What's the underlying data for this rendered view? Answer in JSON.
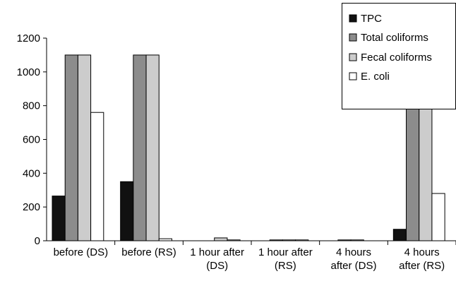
{
  "chart_data": {
    "type": "bar",
    "categories": [
      [
        "before (DS)"
      ],
      [
        "before (RS)"
      ],
      [
        "1 hour after",
        "(DS)"
      ],
      [
        "1 hour after",
        "(RS)"
      ],
      [
        "4 hours",
        "after (DS)"
      ],
      [
        "4 hours",
        "after (RS)"
      ]
    ],
    "series": [
      {
        "name": "TPC",
        "color": "#111111",
        "values": [
          265,
          350,
          0,
          0,
          0,
          68
        ]
      },
      {
        "name": "Total coliforms",
        "color": "#8c8c8c",
        "values": [
          1100,
          1100,
          0,
          5,
          5,
          830
        ]
      },
      {
        "name": "Fecal coliforms",
        "color": "#cccccc",
        "values": [
          1100,
          1100,
          17,
          5,
          5,
          830
        ]
      },
      {
        "name": "E. coli",
        "color": "#ffffff",
        "values": [
          760,
          12,
          5,
          5,
          0,
          280
        ]
      }
    ],
    "ylim": [
      0,
      1200
    ],
    "yticks": [
      "0",
      "200",
      "400",
      "600",
      "800",
      "1000",
      "1200"
    ],
    "grid": false,
    "legend": "top-right"
  }
}
